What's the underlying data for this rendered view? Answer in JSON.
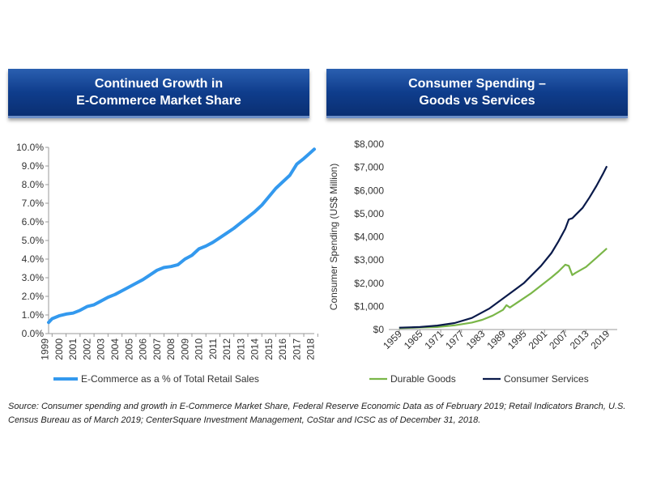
{
  "chart_data": [
    {
      "type": "line",
      "title": "Continued Growth in E-Commerce Market Share",
      "title_lines": [
        "Continued Growth in",
        "E-Commerce Market Share"
      ],
      "ylim": [
        0,
        10
      ],
      "y_ticks": [
        0,
        1,
        2,
        3,
        4,
        5,
        6,
        7,
        8,
        9,
        10
      ],
      "y_tick_labels": [
        "0.0%",
        "1.0%",
        "2.0%",
        "3.0%",
        "4.0%",
        "5.0%",
        "6.0%",
        "7.0%",
        "8.0%",
        "9.0%",
        "10.0%"
      ],
      "x_tick_labels": [
        "1999",
        "2000",
        "2001",
        "2002",
        "2003",
        "2004",
        "2005",
        "2006",
        "2007",
        "2008",
        "2009",
        "2010",
        "2011",
        "2012",
        "2013",
        "2014",
        "2015",
        "2016",
        "2017",
        "2018"
      ],
      "xlim": [
        1999.75,
        2018.75
      ],
      "legend_position": "bottom",
      "grid": false,
      "series": [
        {
          "name": "E-Commerce as a % of Total Retail Sales",
          "color": "#3399ee",
          "x": [
            1999.75,
            2000.0,
            2000.5,
            2001.0,
            2001.5,
            2002.0,
            2002.5,
            2003.0,
            2003.5,
            2004.0,
            2004.5,
            2005.0,
            2005.5,
            2006.0,
            2006.5,
            2007.0,
            2007.5,
            2008.0,
            2008.5,
            2009.0,
            2009.5,
            2010.0,
            2010.5,
            2011.0,
            2011.5,
            2012.0,
            2012.5,
            2013.0,
            2013.5,
            2014.0,
            2014.5,
            2015.0,
            2015.5,
            2016.0,
            2016.5,
            2017.0,
            2017.5,
            2018.0,
            2018.75
          ],
          "values": [
            0.6,
            0.8,
            0.95,
            1.05,
            1.1,
            1.25,
            1.45,
            1.55,
            1.75,
            1.95,
            2.1,
            2.3,
            2.5,
            2.7,
            2.9,
            3.15,
            3.4,
            3.55,
            3.6,
            3.7,
            4.0,
            4.2,
            4.55,
            4.7,
            4.9,
            5.15,
            5.4,
            5.65,
            5.95,
            6.25,
            6.55,
            6.9,
            7.35,
            7.8,
            8.15,
            8.5,
            9.1,
            9.4,
            9.9
          ]
        }
      ]
    },
    {
      "type": "line",
      "title": "Consumer Spending – Goods vs Services",
      "title_lines": [
        "Consumer Spending –",
        "Goods vs Services"
      ],
      "ylabel": "Consumer Spending (US$ Million)",
      "ylim": [
        0,
        8000
      ],
      "y_ticks": [
        0,
        1000,
        2000,
        3000,
        4000,
        5000,
        6000,
        7000,
        8000
      ],
      "y_tick_labels": [
        "$0",
        "$1,000",
        "$2,000",
        "$3,000",
        "$4,000",
        "$5,000",
        "$6,000",
        "$7,000",
        "$8,000"
      ],
      "x_ticks": [
        1959,
        1965,
        1971,
        1977,
        1983,
        1989,
        1995,
        2001,
        2007,
        2013,
        2019
      ],
      "x_tick_labels": [
        "1959",
        "1965",
        "1971",
        "1977",
        "1983",
        "1989",
        "1995",
        "2001",
        "2007",
        "2013",
        "2019"
      ],
      "xlim": [
        1956,
        2022
      ],
      "legend_position": "bottom",
      "grid": false,
      "series": [
        {
          "name": "Durable Goods",
          "color": "#7ab648",
          "x": [
            1959,
            1965,
            1970,
            1975,
            1980,
            1983,
            1986,
            1989,
            1990,
            1991,
            1994,
            1997,
            2000,
            2003,
            2005,
            2007,
            2008,
            2009,
            2010,
            2013,
            2016,
            2019
          ],
          "values": [
            60,
            90,
            110,
            180,
            300,
            420,
            600,
            850,
            1050,
            950,
            1250,
            1550,
            1900,
            2250,
            2500,
            2800,
            2750,
            2350,
            2450,
            2700,
            3100,
            3500
          ]
        },
        {
          "name": "Consumer Services",
          "color": "#0a1a4a",
          "x": [
            1959,
            1965,
            1970,
            1975,
            1980,
            1985,
            1990,
            1995,
            2000,
            2003,
            2005,
            2007,
            2008,
            2009,
            2010,
            2012,
            2014,
            2016,
            2018,
            2019
          ],
          "values": [
            80,
            110,
            170,
            280,
            500,
            900,
            1450,
            2000,
            2750,
            3300,
            3800,
            4350,
            4750,
            4800,
            4950,
            5250,
            5700,
            6200,
            6750,
            7050
          ]
        }
      ]
    }
  ],
  "source_text": "Source: Consumer spending and growth in E-Commerce Market Share, Federal Reserve Economic Data as of February 2019; Retail Indicators Branch, U.S. Census Bureau as of March 2019; CenterSquare Investment Management, CoStar and ICSC as of December 31, 2018."
}
